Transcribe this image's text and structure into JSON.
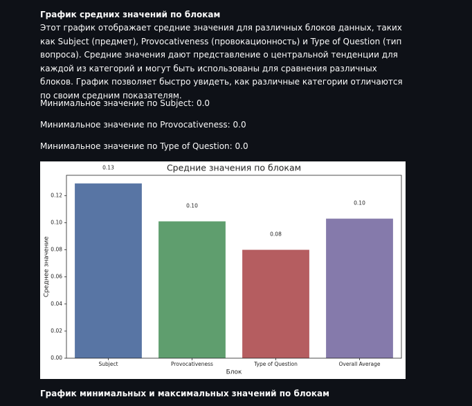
{
  "header": {
    "title": "График средних значений по блокам"
  },
  "description": "Этот график отображает средние значения для различных блоков данных, таких как Subject (предмет), Provocativeness (провокационность) и Type of Question (тип вопроса). Средние значения дают представление о центральной тенденции для каждой из категорий и могут быть использованы для сравнения различных блоков. График позволяет быстро увидеть, как различные категории отличаются по своим средним показателям.",
  "minimums": [
    "Минимальное значение по Subject: 0.0",
    "Минимальное значение по Provocativeness: 0.0",
    "Минимальное значение по Type of Question: 0.0"
  ],
  "chart_data": {
    "type": "bar",
    "title": "Средние значения по блокам",
    "x_label": "Блок",
    "y_label": "Среднее значение",
    "categories": [
      "Subject",
      "Provocativeness",
      "Type of Question",
      "Overall Average"
    ],
    "values": [
      0.129,
      0.101,
      0.08,
      0.103
    ],
    "value_labels": [
      "0.13",
      "0.10",
      "0.08",
      "0.10"
    ],
    "colors": [
      "#5875a4",
      "#5f9e6e",
      "#b55d60",
      "#857aab"
    ],
    "ylim": [
      0,
      0.135
    ],
    "yticks": [
      {
        "value": 0,
        "label": "0.00"
      },
      {
        "value": 0.02,
        "label": "0.02"
      },
      {
        "value": 0.04,
        "label": "0.04"
      },
      {
        "value": 0.06,
        "label": "0.06"
      },
      {
        "value": 0.08,
        "label": "0.08"
      },
      {
        "value": 0.1,
        "label": "0.10"
      },
      {
        "value": 0.12,
        "label": "0.12"
      }
    ]
  },
  "next_section": {
    "title": "График минимальных и максимальных значений по блокам"
  }
}
